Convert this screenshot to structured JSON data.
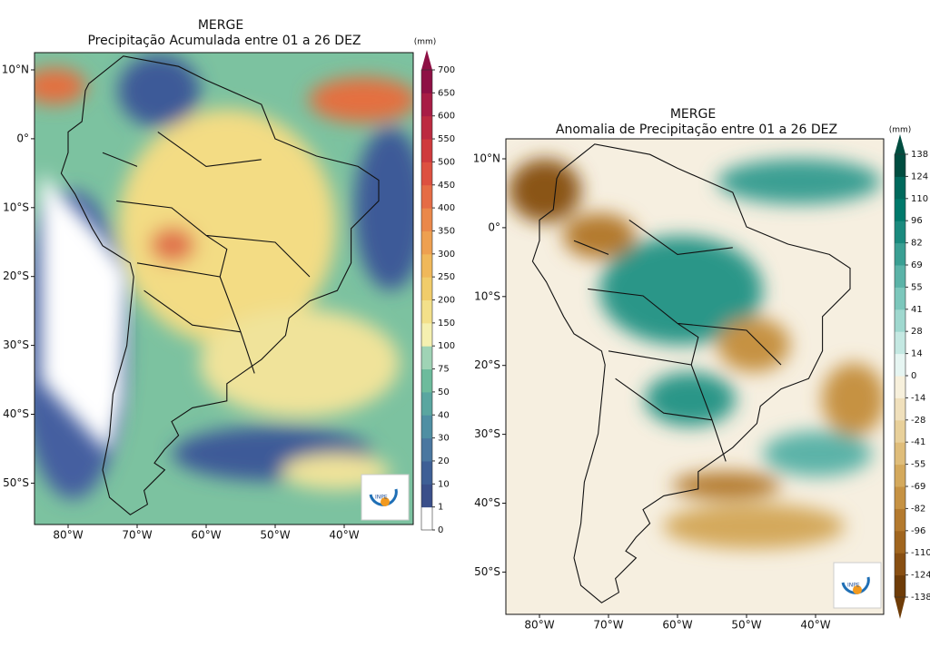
{
  "left": {
    "title": "MERGE",
    "subtitle": "Precipitação Acumulada entre 01 a  26 DEZ",
    "unit": "(mm)",
    "colorbar_ticks": [
      0,
      1,
      10,
      20,
      30,
      40,
      50,
      75,
      100,
      150,
      200,
      250,
      300,
      350,
      400,
      450,
      500,
      550,
      600,
      650,
      700
    ],
    "lat_labels": [
      "10°N",
      "0°",
      "10°S",
      "20°S",
      "30°S",
      "40°S",
      "50°S"
    ],
    "lon_labels": [
      "80°W",
      "70°W",
      "60°W",
      "50°W",
      "40°W"
    ],
    "logo": "INPE"
  },
  "right": {
    "title": "MERGE",
    "subtitle": "Anomalia de Precipitação entre 01 a 26 DEZ",
    "unit": "(mm)",
    "colorbar_ticks": [
      -138,
      -124,
      -110,
      -96,
      -82,
      -69,
      -55,
      -41,
      -28,
      -14,
      0,
      14,
      28,
      41,
      55,
      69,
      82,
      96,
      110,
      124,
      138
    ],
    "lat_labels": [
      "10°N",
      "0°",
      "10°S",
      "20°S",
      "30°S",
      "40°S",
      "50°S"
    ],
    "lon_labels": [
      "80°W",
      "70°W",
      "60°W",
      "50°W",
      "40°W"
    ],
    "logo": "INPE"
  }
}
